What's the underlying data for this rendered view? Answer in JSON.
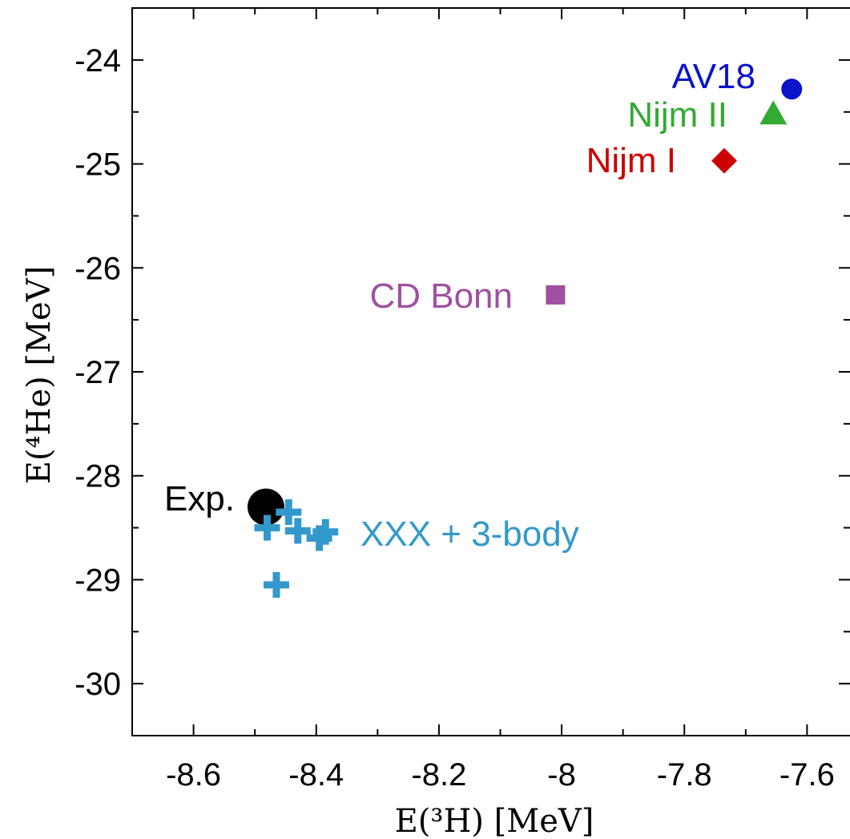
{
  "chart_data": {
    "type": "scatter",
    "xlabel": "E(³H)   [MeV]",
    "ylabel": "E(⁴He)   [MeV]",
    "xlim": [
      -8.7,
      -7.53
    ],
    "ylim": [
      -30.5,
      -23.5
    ],
    "x_ticks": [
      -8.6,
      -8.4,
      -8.2,
      -8,
      -7.8,
      -7.6
    ],
    "x_tick_labels": [
      "-8.6",
      "-8.4",
      "-8.2",
      "-8",
      "-7.8",
      "-7.6"
    ],
    "y_ticks": [
      -24,
      -25,
      -26,
      -27,
      -28,
      -29,
      -30
    ],
    "y_tick_labels": [
      "-24",
      "-25",
      "-26",
      "-27",
      "-28",
      "-29",
      "-30"
    ],
    "grid": false,
    "series": [
      {
        "name": "AV18",
        "marker": "circle",
        "color": "#0a14c8",
        "points": [
          {
            "x": -7.625,
            "y": -24.28
          }
        ]
      },
      {
        "name": "Nijm II",
        "marker": "triangle",
        "color": "#33aa33",
        "points": [
          {
            "x": -7.655,
            "y": -24.52
          }
        ]
      },
      {
        "name": "Nijm I",
        "marker": "diamond",
        "color": "#cc0000",
        "points": [
          {
            "x": -7.735,
            "y": -24.97
          }
        ]
      },
      {
        "name": "CD Bonn",
        "marker": "square",
        "color": "#a050a0",
        "points": [
          {
            "x": -8.01,
            "y": -26.26
          }
        ]
      },
      {
        "name": "Exp.",
        "marker": "circle-large",
        "color": "#000000",
        "points": [
          {
            "x": -8.482,
            "y": -28.3
          }
        ]
      },
      {
        "name": "XXX + 3-body",
        "marker": "plus",
        "color": "#3399cc",
        "points": [
          {
            "x": -8.48,
            "y": -28.5
          },
          {
            "x": -8.445,
            "y": -28.35
          },
          {
            "x": -8.43,
            "y": -28.53
          },
          {
            "x": -8.395,
            "y": -28.6
          },
          {
            "x": -8.385,
            "y": -28.54
          },
          {
            "x": -8.465,
            "y": -29.05
          }
        ]
      }
    ],
    "annotations": [
      {
        "text": "AV18",
        "color": "#0a14c8"
      },
      {
        "text": "Nijm II",
        "color": "#33aa33"
      },
      {
        "text": "Nijm I",
        "color": "#cc0000"
      },
      {
        "text": "CD Bonn",
        "color": "#a050a0"
      },
      {
        "text": "Exp.",
        "color": "#000000"
      },
      {
        "text": "XXX + 3-body",
        "color": "#3399cc"
      }
    ]
  }
}
